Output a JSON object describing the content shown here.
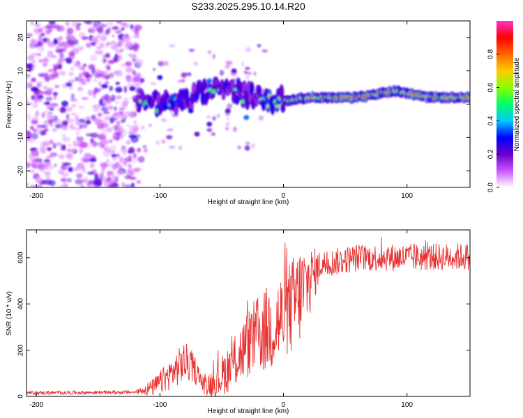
{
  "title": "S233.2025.295.10.14.R20",
  "chart_data": [
    {
      "type": "heatmap",
      "xlabel": "Height of straight line (km)",
      "ylabel": "Frequency (Hz)",
      "xlim": [
        -208,
        151
      ],
      "ylim": [
        -25,
        25
      ],
      "xticks": [
        -200,
        -100,
        0,
        100
      ],
      "yticks": [
        -20,
        -10,
        0,
        10,
        20
      ],
      "colorbar": {
        "label": "Normalized spectral amplitude",
        "range": [
          0.0,
          1.0
        ],
        "ticks": [
          "0.0",
          "0.2",
          "0.4",
          "0.6",
          "0.8"
        ],
        "colors": [
          "#ffffff",
          "#cc55ff",
          "#6600cc",
          "#0000ff",
          "#00ccff",
          "#00ff66",
          "#88ff00",
          "#ffcc00",
          "#ff6600",
          "#ff0000",
          "#ff33cc"
        ]
      },
      "ridge": {
        "description_points": [
          {
            "x": -115,
            "y": 2
          },
          {
            "x": -100,
            "y": 0
          },
          {
            "x": -80,
            "y": 1
          },
          {
            "x": -60,
            "y": 4
          },
          {
            "x": -40,
            "y": 4
          },
          {
            "x": -20,
            "y": 2
          },
          {
            "x": 0,
            "y": 1
          },
          {
            "x": 20,
            "y": 2
          },
          {
            "x": 60,
            "y": 2
          },
          {
            "x": 90,
            "y": 4
          },
          {
            "x": 120,
            "y": 2
          },
          {
            "x": 151,
            "y": 2
          }
        ]
      }
    },
    {
      "type": "line",
      "xlabel": "Height of straight line (km)",
      "ylabel": "SNR (10 * v/v)",
      "xlim": [
        -208,
        151
      ],
      "ylim": [
        0,
        720
      ],
      "xticks": [
        -200,
        -100,
        0,
        100
      ],
      "yticks": [
        0,
        200,
        400,
        600
      ],
      "color": "#e83030",
      "trend": [
        {
          "x": -208,
          "y": 15
        },
        {
          "x": -120,
          "y": 18
        },
        {
          "x": -105,
          "y": 40
        },
        {
          "x": -95,
          "y": 80
        },
        {
          "x": -80,
          "y": 150
        },
        {
          "x": -72,
          "y": 120
        },
        {
          "x": -65,
          "y": 50
        },
        {
          "x": -55,
          "y": 60
        },
        {
          "x": -40,
          "y": 150
        },
        {
          "x": -25,
          "y": 250
        },
        {
          "x": -10,
          "y": 300
        },
        {
          "x": 0,
          "y": 340
        },
        {
          "x": 15,
          "y": 450
        },
        {
          "x": 30,
          "y": 570
        },
        {
          "x": 60,
          "y": 600
        },
        {
          "x": 100,
          "y": 600
        },
        {
          "x": 151,
          "y": 605
        }
      ],
      "noise_amplitude": [
        {
          "x": -208,
          "y": 8
        },
        {
          "x": -120,
          "y": 8
        },
        {
          "x": -100,
          "y": 50
        },
        {
          "x": -80,
          "y": 90
        },
        {
          "x": -65,
          "y": 40
        },
        {
          "x": -40,
          "y": 120
        },
        {
          "x": -10,
          "y": 200
        },
        {
          "x": 15,
          "y": 220
        },
        {
          "x": 30,
          "y": 60
        },
        {
          "x": 151,
          "y": 60
        }
      ]
    }
  ]
}
